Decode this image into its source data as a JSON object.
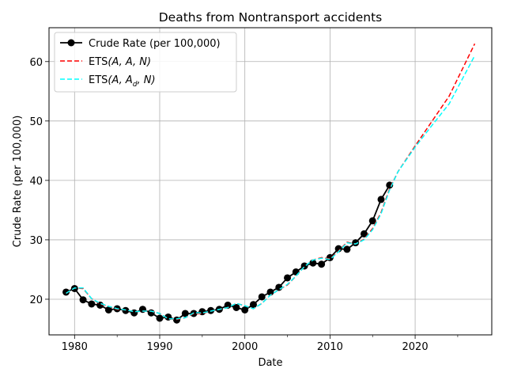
{
  "chart_data": {
    "type": "line",
    "title": "Deaths from Nontransport accidents",
    "xlabel": "Date",
    "ylabel": "Crude Rate (per 100,000)",
    "xlim": [
      1977,
      2029
    ],
    "ylim": [
      14,
      65.7
    ],
    "x_ticks": [
      1980,
      1990,
      2000,
      2010,
      2020
    ],
    "y_ticks": [
      20,
      30,
      40,
      50,
      60
    ],
    "grid": true,
    "legend_position": "upper-left",
    "colors": {
      "observed": "#000000",
      "ets_aan": "#ff0000",
      "ets_aadn": "#00ffff",
      "grid": "#b0b0b0"
    },
    "series": [
      {
        "name": "Crude Rate (per 100,000)",
        "style": "solid-with-markers",
        "x": [
          1979,
          1980,
          1981,
          1982,
          1983,
          1984,
          1985,
          1986,
          1987,
          1988,
          1989,
          1990,
          1991,
          1992,
          1993,
          1994,
          1995,
          1996,
          1997,
          1998,
          1999,
          2000,
          2001,
          2002,
          2003,
          2004,
          2005,
          2006,
          2007,
          2008,
          2009,
          2010,
          2011,
          2012,
          2013,
          2014,
          2015,
          2016,
          2017
        ],
        "y": [
          21.2,
          21.8,
          19.9,
          19.2,
          19.0,
          18.2,
          18.4,
          18.1,
          17.7,
          18.3,
          17.7,
          16.8,
          17.0,
          16.5,
          17.6,
          17.6,
          17.9,
          18.1,
          18.3,
          19.0,
          18.6,
          18.2,
          19.1,
          20.4,
          21.2,
          22.0,
          23.6,
          24.6,
          25.6,
          26.1,
          25.9,
          27.0,
          28.5,
          28.4,
          29.5,
          31.0,
          33.2,
          36.8,
          39.2
        ]
      },
      {
        "name": "ETS(A,A,N)",
        "style": "dashed",
        "x": [
          1979,
          1980,
          1981,
          1982,
          1983,
          1984,
          1985,
          1986,
          1987,
          1988,
          1989,
          1990,
          1991,
          1992,
          1993,
          1994,
          1995,
          1996,
          1997,
          1998,
          1999,
          2000,
          2001,
          2002,
          2003,
          2004,
          2005,
          2006,
          2007,
          2008,
          2009,
          2010,
          2011,
          2012,
          2013,
          2014,
          2015,
          2016,
          2017,
          2018,
          2020,
          2022,
          2024,
          2027
        ],
        "y": [
          21.0,
          21.9,
          21.8,
          20.1,
          19.2,
          18.8,
          18.3,
          18.2,
          17.9,
          18.0,
          18.0,
          17.6,
          16.7,
          16.6,
          16.9,
          17.6,
          17.6,
          18.0,
          18.3,
          18.6,
          19.3,
          18.9,
          18.4,
          19.3,
          20.7,
          21.6,
          22.4,
          23.9,
          25.5,
          26.6,
          27.0,
          26.8,
          28.1,
          29.6,
          29.3,
          30.1,
          31.9,
          34.6,
          38.6,
          41.5,
          45.8,
          50.0,
          54.2,
          63.0
        ]
      },
      {
        "name": "ETS(A,A_d,N)",
        "style": "dashed",
        "x": [
          1979,
          1980,
          1981,
          1982,
          1983,
          1984,
          1985,
          1986,
          1987,
          1988,
          1989,
          1990,
          1991,
          1992,
          1993,
          1994,
          1995,
          1996,
          1997,
          1998,
          1999,
          2000,
          2001,
          2002,
          2003,
          2004,
          2005,
          2006,
          2007,
          2008,
          2009,
          2010,
          2011,
          2012,
          2013,
          2014,
          2015,
          2016,
          2017,
          2018,
          2020,
          2022,
          2024,
          2027
        ],
        "y": [
          21.0,
          21.9,
          21.9,
          20.1,
          19.3,
          18.8,
          18.4,
          18.2,
          17.9,
          18.0,
          18.0,
          17.6,
          16.7,
          16.7,
          16.9,
          17.7,
          17.7,
          18.0,
          18.3,
          18.6,
          19.3,
          18.9,
          18.4,
          19.3,
          20.7,
          21.6,
          22.5,
          23.9,
          25.5,
          26.6,
          26.9,
          26.7,
          28.0,
          29.5,
          29.3,
          30.0,
          31.7,
          34.4,
          38.4,
          41.5,
          45.6,
          49.3,
          52.9,
          61.0
        ]
      }
    ]
  },
  "legend": {
    "observed_label": "Crude Rate (per 100,000)",
    "aan_prefix": "ETS",
    "aan_args": "(A, A, N)",
    "aadn_prefix": "ETS",
    "aadn_args_pre": "(A, A",
    "aadn_sub": "d",
    "aadn_args_post": ", N)"
  }
}
